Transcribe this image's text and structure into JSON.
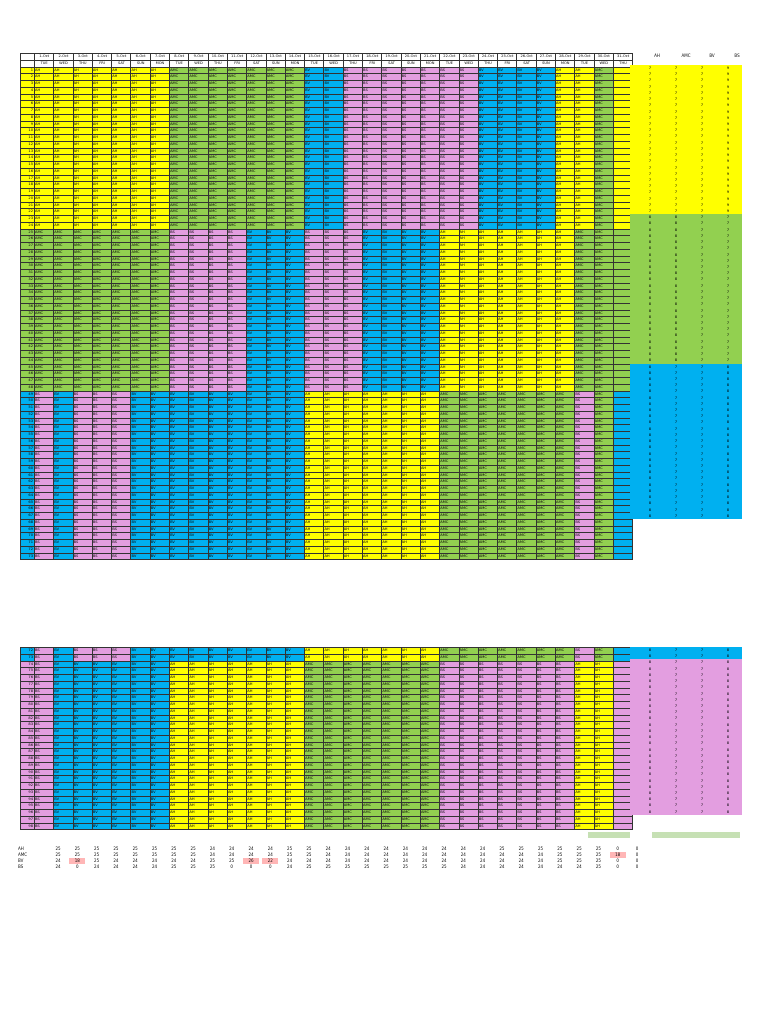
{
  "dates": [
    "1-Oct",
    "2-Oct",
    "3-Oct",
    "4-Oct",
    "5-Oct",
    "6-Oct",
    "7-Oct",
    "8-Oct",
    "9-Oct",
    "10-Oct",
    "11-Oct",
    "12-Oct",
    "13-Oct",
    "14-Oct",
    "15-Oct",
    "16-Oct",
    "17-Oct",
    "18-Oct",
    "19-Oct",
    "20-Oct",
    "21-Oct",
    "22-Oct",
    "23-Oct",
    "24-Oct",
    "25-Oct",
    "26-Oct",
    "27-Oct",
    "28-Oct",
    "29-Oct",
    "30-Oct",
    "31-Oct"
  ],
  "days": [
    "TUE",
    "WED",
    "THU",
    "FRI",
    "SAT",
    "SUN",
    "MON",
    "TUE",
    "WED",
    "THU",
    "FRI",
    "SAT",
    "SUN",
    "MON",
    "TUE",
    "WED",
    "THU",
    "FRI",
    "SAT",
    "SUN",
    "MON",
    "TUE",
    "WED",
    "THU",
    "FRI",
    "SAT",
    "SUN",
    "MON",
    "TUE",
    "WED",
    "THU"
  ],
  "side_headers": [
    "AH",
    "AMC",
    "BV",
    "BS"
  ],
  "groups": [
    {
      "first_row": 1,
      "last_row": 24,
      "pattern": [
        "AH",
        "AH",
        "AH",
        "AH",
        "AH",
        "AH",
        "AH",
        "AMC",
        "AMC",
        "AMC",
        "AMC",
        "AMC",
        "AMC",
        "AMC",
        "BV",
        "BV",
        "BS",
        "BS",
        "BS",
        "BS",
        "BS",
        "BS",
        "BS",
        "BV",
        "BV",
        "BV",
        "BV",
        "AH",
        "AH",
        "AMC"
      ],
      "counts": [
        "7",
        "7",
        "7",
        "9"
      ],
      "color_class": "c-AH"
    },
    {
      "first_row": 25,
      "last_row": 48,
      "pattern": [
        "AMC",
        "AMC",
        "AMC",
        "AMC",
        "AMC",
        "AMC",
        "AMC",
        "BS",
        "BS",
        "BS",
        "BS",
        "BV",
        "BV",
        "BV",
        "BS",
        "BS",
        "BS",
        "BV",
        "BV",
        "BV",
        "BV",
        "AH",
        "AH",
        "AH",
        "AH",
        "AH",
        "AH",
        "AH",
        "AMC",
        "AMC"
      ],
      "counts": [
        "8",
        "8",
        "7",
        "7"
      ],
      "color_class": "c-AMC"
    },
    {
      "first_row": 49,
      "last_row": 73,
      "pattern": [
        "BS",
        "BV",
        "BS",
        "BS",
        "BS",
        "BV",
        "BV",
        "BV",
        "BV",
        "BV",
        "BV",
        "BV",
        "BV",
        "BV",
        "AH",
        "AH",
        "AH",
        "AH",
        "AH",
        "AH",
        "AH",
        "AMC",
        "AMC",
        "AMC",
        "AMC",
        "AMC",
        "AMC",
        "AMC",
        "BS",
        "AMC"
      ],
      "counts": [
        "8",
        "7",
        "7",
        "8"
      ],
      "color_class": "c-BV"
    },
    {
      "first_row": 74,
      "last_row": 98,
      "pattern": [
        "BS",
        "BV",
        "BV",
        "BV",
        "BV",
        "BV",
        "BV",
        "AH",
        "AH",
        "AH",
        "AH",
        "AH",
        "AH",
        "AH",
        "AMC",
        "AMC",
        "AMC",
        "AMC",
        "AMC",
        "AMC",
        "AMC",
        "BS",
        "BS",
        "BS",
        "BS",
        "BS",
        "BS",
        "BS",
        "AH",
        "AH"
      ],
      "counts": [
        "8",
        "7",
        "7",
        "8"
      ],
      "color_class": "c-BS"
    }
  ],
  "section1_rows": [
    1,
    73
  ],
  "section2_rows": [
    72,
    98
  ],
  "stats": {
    "labels": [
      "AH",
      "AMC",
      "BV",
      "BS"
    ],
    "rows": [
      [
        "25",
        "25",
        "25",
        "25",
        "25",
        "25",
        "25",
        "25",
        "24",
        "24",
        "24",
        "24",
        "25",
        "25",
        "24",
        "24",
        "24",
        "24",
        "24",
        "24",
        "24",
        "24",
        "24",
        "25",
        "25",
        "25",
        "25",
        "25",
        "25",
        "0",
        "0"
      ],
      [
        "25",
        "25",
        "25",
        "25",
        "25",
        "25",
        "25",
        "25",
        "24",
        "24",
        "24",
        "24",
        "25",
        "25",
        "24",
        "24",
        "24",
        "24",
        "24",
        "24",
        "24",
        "24",
        "24",
        "24",
        "24",
        "24",
        "25",
        "25",
        "25",
        "18",
        "0"
      ],
      [
        "24",
        "18",
        "25",
        "24",
        "24",
        "24",
        "24",
        "24",
        "25",
        "25",
        "26",
        "22",
        "24",
        "24",
        "24",
        "24",
        "24",
        "24",
        "24",
        "24",
        "24",
        "24",
        "24",
        "24",
        "24",
        "24",
        "25",
        "25",
        "25",
        "0",
        "0"
      ],
      [
        "24",
        "0",
        "24",
        "24",
        "24",
        "24",
        "25",
        "25",
        "25",
        "0",
        "0",
        "0",
        "24",
        "25",
        "25",
        "25",
        "25",
        "25",
        "25",
        "25",
        "25",
        "24",
        "24",
        "24",
        "24",
        "24",
        "24",
        "24",
        "25",
        "0",
        "0"
      ]
    ]
  }
}
